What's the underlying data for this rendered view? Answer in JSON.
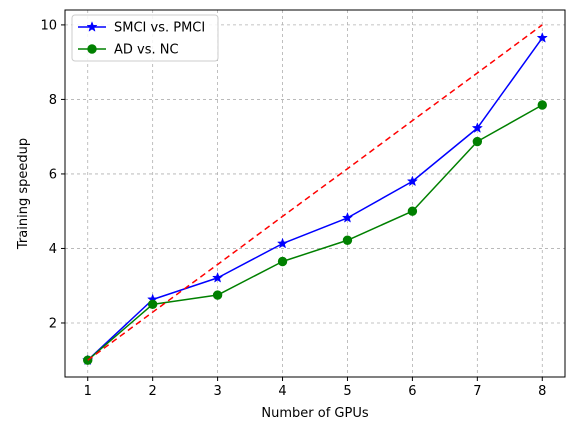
{
  "chart_data": {
    "type": "line",
    "title": "",
    "xlabel": "Number of GPUs",
    "ylabel": "Training speedup",
    "x": [
      1,
      2,
      3,
      4,
      5,
      6,
      7,
      8
    ],
    "xticks": [
      "1",
      "2",
      "3",
      "4",
      "5",
      "6",
      "7",
      "8"
    ],
    "yticks": [
      "2",
      "4",
      "6",
      "8",
      "10"
    ],
    "xlim": [
      0.65,
      8.35
    ],
    "ylim": [
      0.55,
      10.4
    ],
    "grid": true,
    "legend_position": "top-left",
    "series": [
      {
        "name": "SMCI vs. PMCI",
        "values": [
          1.0,
          2.63,
          3.21,
          4.13,
          4.82,
          5.8,
          7.23,
          9.65
        ],
        "color": "#0000ff",
        "marker": "star",
        "line_style": "solid"
      },
      {
        "name": "AD vs. NC",
        "values": [
          1.0,
          2.5,
          2.75,
          3.65,
          4.22,
          5.0,
          6.87,
          7.85
        ],
        "color": "#008000",
        "marker": "circle",
        "line_style": "solid"
      },
      {
        "name": "",
        "values": [
          1,
          2.29,
          3.57,
          4.86,
          6.14,
          7.43,
          8.71,
          10
        ],
        "color": "#ff0000",
        "marker": "none",
        "line_style": "dashed"
      }
    ]
  }
}
